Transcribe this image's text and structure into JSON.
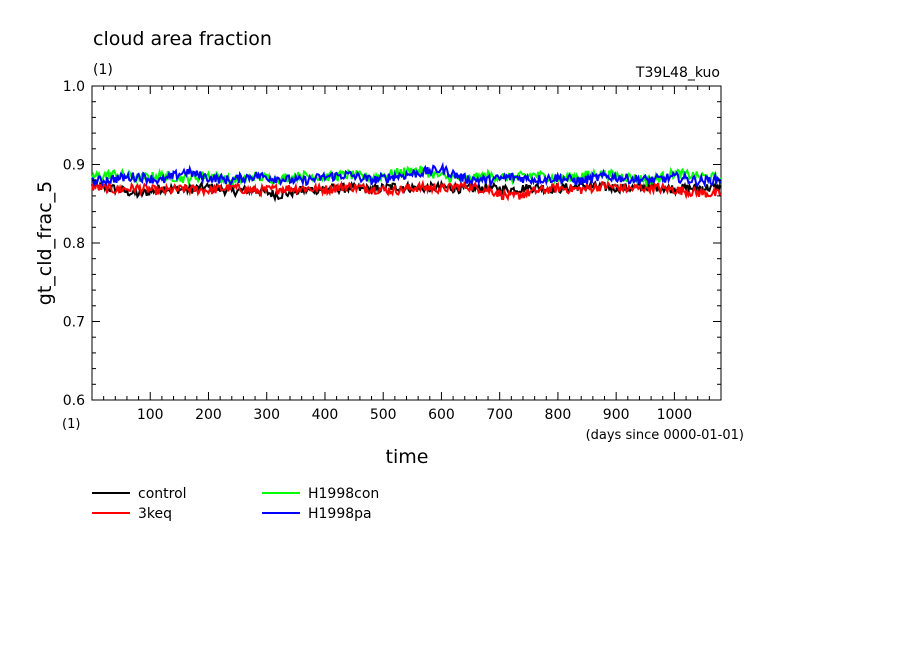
{
  "chart_data": {
    "type": "line",
    "title": "cloud area fraction",
    "title_unit": "(1)",
    "run_label": "T39L48_kuo",
    "xlabel": "time",
    "xunit": "(days since 0000-01-01)",
    "ylabel": "gt_cld_frac_5",
    "yunit": "(1)",
    "xlim": [
      0,
      1080
    ],
    "ylim": [
      0.6,
      1.0
    ],
    "xticks": [
      100,
      200,
      300,
      400,
      500,
      600,
      700,
      800,
      900,
      1000
    ],
    "yticks": [
      "0.6",
      "0.7",
      "0.8",
      "0.9",
      "1.0"
    ],
    "grid": false,
    "legend_position": "bottom-left",
    "series": [
      {
        "name": "control",
        "color": "#000000",
        "x": [
          0,
          40,
          80,
          120,
          160,
          200,
          240,
          280,
          320,
          360,
          400,
          440,
          480,
          520,
          560,
          600,
          640,
          680,
          720,
          760,
          800,
          840,
          880,
          920,
          960,
          1000,
          1040,
          1080
        ],
        "values": [
          0.872,
          0.869,
          0.862,
          0.87,
          0.868,
          0.871,
          0.866,
          0.868,
          0.861,
          0.867,
          0.869,
          0.87,
          0.868,
          0.872,
          0.87,
          0.871,
          0.869,
          0.87,
          0.868,
          0.871,
          0.869,
          0.873,
          0.871,
          0.87,
          0.872,
          0.869,
          0.87,
          0.871
        ]
      },
      {
        "name": "3keq",
        "color": "#ff0000",
        "x": [
          0,
          40,
          80,
          120,
          160,
          200,
          240,
          280,
          320,
          360,
          400,
          440,
          480,
          520,
          560,
          600,
          640,
          680,
          720,
          760,
          800,
          840,
          880,
          920,
          960,
          1000,
          1040,
          1080
        ],
        "values": [
          0.872,
          0.868,
          0.87,
          0.866,
          0.869,
          0.867,
          0.871,
          0.866,
          0.869,
          0.87,
          0.868,
          0.872,
          0.869,
          0.867,
          0.871,
          0.869,
          0.873,
          0.868,
          0.858,
          0.866,
          0.87,
          0.868,
          0.873,
          0.869,
          0.871,
          0.868,
          0.864,
          0.862
        ]
      },
      {
        "name": "H1998con",
        "color": "#00ff00",
        "x": [
          0,
          40,
          80,
          120,
          160,
          200,
          240,
          280,
          320,
          360,
          400,
          440,
          480,
          520,
          560,
          600,
          640,
          680,
          720,
          760,
          800,
          840,
          880,
          920,
          960,
          1000,
          1040,
          1080
        ],
        "values": [
          0.884,
          0.888,
          0.883,
          0.886,
          0.882,
          0.887,
          0.879,
          0.885,
          0.881,
          0.886,
          0.884,
          0.887,
          0.883,
          0.889,
          0.893,
          0.885,
          0.881,
          0.886,
          0.883,
          0.887,
          0.882,
          0.886,
          0.888,
          0.884,
          0.88,
          0.889,
          0.885,
          0.883
        ]
      },
      {
        "name": "H1998pa",
        "color": "#0000ff",
        "x": [
          0,
          40,
          80,
          120,
          160,
          200,
          240,
          280,
          320,
          360,
          400,
          440,
          480,
          520,
          560,
          600,
          640,
          680,
          720,
          760,
          800,
          840,
          880,
          920,
          960,
          1000,
          1040,
          1080
        ],
        "values": [
          0.878,
          0.882,
          0.885,
          0.879,
          0.891,
          0.883,
          0.88,
          0.886,
          0.882,
          0.879,
          0.884,
          0.887,
          0.88,
          0.885,
          0.889,
          0.894,
          0.882,
          0.88,
          0.884,
          0.881,
          0.883,
          0.879,
          0.885,
          0.882,
          0.88,
          0.884,
          0.879,
          0.881
        ]
      }
    ]
  }
}
